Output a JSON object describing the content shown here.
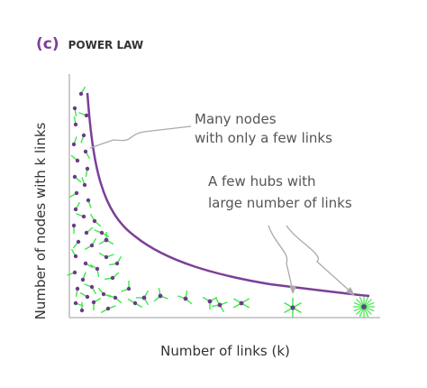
{
  "panel": {
    "letter": "(c)",
    "title": "POWER LAW"
  },
  "axes": {
    "ylabel": "Number of nodes with k links",
    "xlabel": "Number of links (k)"
  },
  "annotations": [
    {
      "id": "few-links",
      "lines": [
        "Many nodes",
        "with only a few links"
      ]
    },
    {
      "id": "hubs",
      "lines": [
        "A few hubs with",
        "large number of links"
      ]
    }
  ],
  "colors": {
    "curve": "#7b3f98",
    "node": "#6a3b8a",
    "link": "#3ee84a",
    "axis": "#bbbbbb",
    "annotation_line": "#aaaaaa",
    "panel_letter": "#7b3f98"
  },
  "node_degree_groups": [
    {
      "degree": 1,
      "count": 26
    },
    {
      "degree": 2,
      "count": 14
    },
    {
      "degree": 3,
      "count": 5
    },
    {
      "degree": 4,
      "count": 2
    },
    {
      "degree": 6,
      "count": 1
    },
    {
      "degree": 16,
      "count": 1
    }
  ]
}
